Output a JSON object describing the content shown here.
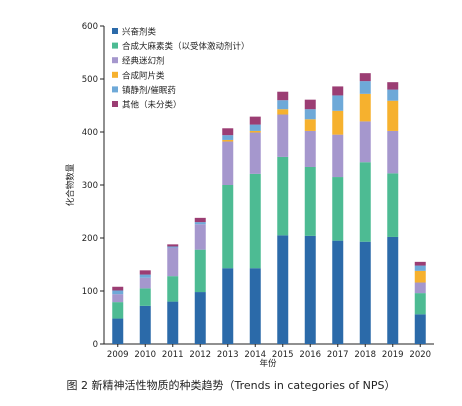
{
  "chart_data": {
    "type": "bar",
    "stacked": true,
    "title": "",
    "xlabel": "年份",
    "ylabel": "化合物数量",
    "ylim": [
      0,
      600
    ],
    "yticks": [
      0,
      100,
      200,
      300,
      400,
      500,
      600
    ],
    "categories": [
      "2009",
      "2010",
      "2011",
      "2012",
      "2013",
      "2014",
      "2015",
      "2016",
      "2017",
      "2018",
      "2019",
      "2020"
    ],
    "legend_position": "top-left",
    "grid": false,
    "series": [
      {
        "name": "兴奋剂类",
        "color": "#2b6aa9",
        "values": [
          48,
          72,
          80,
          98,
          143,
          143,
          205,
          204,
          195,
          193,
          202,
          56
        ]
      },
      {
        "name": "合成大麻素类（以受体激动剂计）",
        "color": "#4dbb93",
        "values": [
          31,
          33,
          48,
          80,
          157,
          178,
          148,
          130,
          120,
          150,
          120,
          40
        ]
      },
      {
        "name": "经典迷幻剂",
        "color": "#a597cd",
        "values": [
          15,
          20,
          54,
          48,
          82,
          78,
          80,
          68,
          80,
          77,
          80,
          20
        ]
      },
      {
        "name": "合成阿片类",
        "color": "#f6b12e",
        "values": [
          0,
          0,
          0,
          0,
          3,
          3,
          10,
          22,
          45,
          52,
          57,
          22
        ]
      },
      {
        "name": "镇静剂/催眠药",
        "color": "#6ea9d8",
        "values": [
          7,
          6,
          2,
          4,
          9,
          12,
          17,
          19,
          29,
          24,
          21,
          10
        ]
      },
      {
        "name": "其他（未分类）",
        "color": "#9b3d73",
        "values": [
          7,
          8,
          4,
          8,
          13,
          15,
          16,
          18,
          17,
          15,
          14,
          7
        ]
      }
    ]
  },
  "caption": "图 2  新精神活性物质的种类趋势（Trends in categories of NPS）"
}
